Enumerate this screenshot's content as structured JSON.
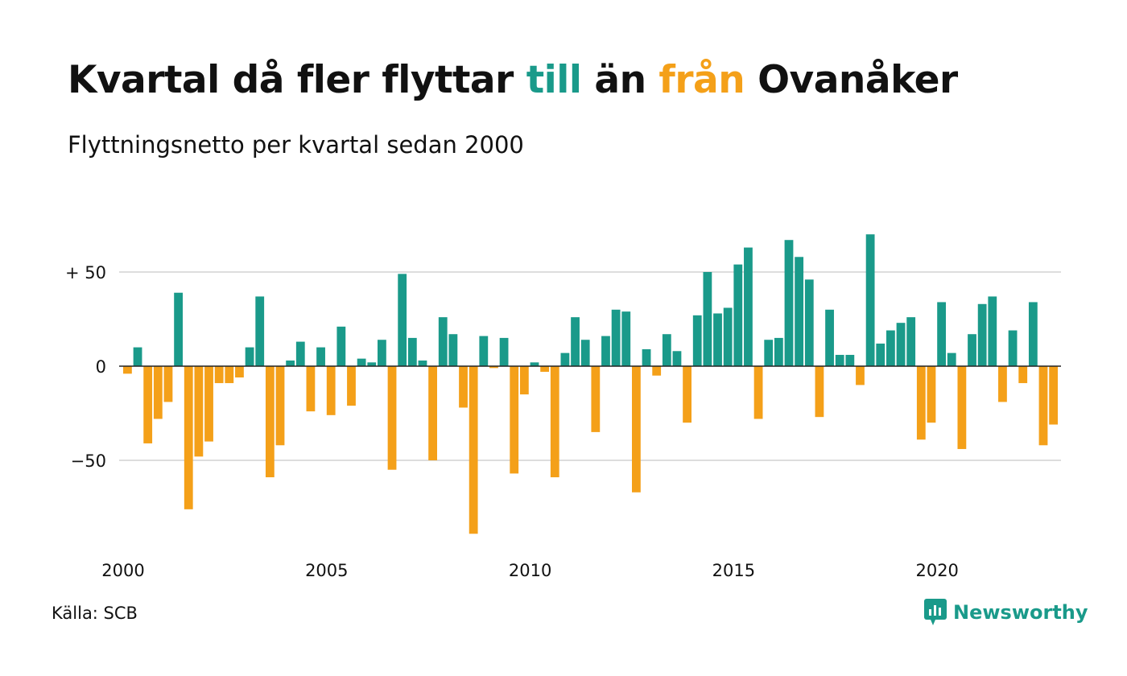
{
  "header": {
    "title_part1": "Kvartal då fler flyttar ",
    "title_up": "till",
    "title_part2": " än ",
    "title_down": "från",
    "title_part3": " Ovanåker",
    "subtitle": "Flyttningsnetto per kvartal sedan 2000"
  },
  "footer": {
    "source": "Källa: SCB",
    "brand": "Newsworthy"
  },
  "colors": {
    "positive": "#1a9a8a",
    "negative": "#f4a019",
    "grid": "#dddddd",
    "zero_line": "#222222"
  },
  "chart_data": {
    "type": "bar",
    "start_year": 2000,
    "x_ticks": [
      "2000",
      "2005",
      "2010",
      "2015",
      "2020"
    ],
    "y_ticks": [
      {
        "value": 50,
        "label": "+ 50"
      },
      {
        "value": 0,
        "label": "0"
      },
      {
        "value": -50,
        "label": "−50"
      }
    ],
    "ylim": [
      -90,
      70
    ],
    "grid": true,
    "values": [
      -4,
      10,
      -41,
      -28,
      -19,
      39,
      -76,
      -48,
      -40,
      -9,
      -9,
      -6,
      10,
      37,
      -59,
      -42,
      3,
      13,
      -24,
      10,
      -26,
      21,
      -21,
      4,
      2,
      14,
      -55,
      49,
      15,
      3,
      -50,
      26,
      17,
      -22,
      -89,
      16,
      -1,
      15,
      -57,
      -15,
      2,
      -3,
      -59,
      7,
      26,
      14,
      -35,
      16,
      30,
      29,
      -67,
      9,
      -5,
      17,
      8,
      -30,
      27,
      50,
      28,
      31,
      54,
      63,
      -28,
      14,
      15,
      67,
      58,
      46,
      -27,
      30,
      6,
      6,
      -10,
      70,
      12,
      19,
      23,
      26,
      -39,
      -30,
      34,
      7,
      -44,
      17,
      33,
      37,
      -19,
      19,
      -9,
      34,
      -42,
      -31
    ]
  }
}
